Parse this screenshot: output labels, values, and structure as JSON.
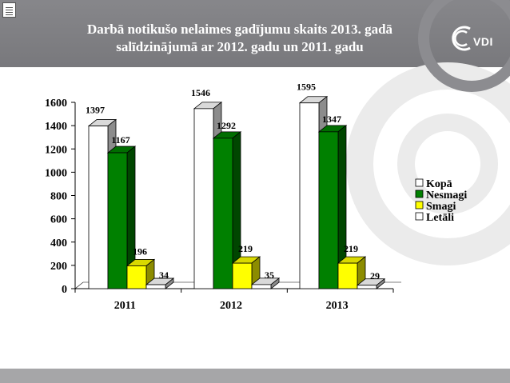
{
  "slide": {
    "title_line_1": "Darbā notikušo nelaimes gadījumu skaits 2013. gadā",
    "title_line_2": "salīdzinājumā ar 2012. gadu un 2011. gadu",
    "logo_text": "VDI",
    "notes_icon": "notes-icon"
  },
  "colors": {
    "header": "#7f7f83",
    "footer": "#a6a6a8",
    "decor": "#e8e8e8"
  },
  "chart_data": {
    "type": "bar",
    "title": "",
    "xlabel": "",
    "ylabel": "",
    "ylim": [
      0,
      1600
    ],
    "yticks": [
      0,
      200,
      400,
      600,
      800,
      1000,
      1200,
      1400,
      1600
    ],
    "grid": false,
    "legend_position": "right",
    "categories": [
      "2011",
      "2012",
      "2013"
    ],
    "series": [
      {
        "name": "Kopā",
        "values": [
          1397,
          1546,
          1595
        ],
        "color": "#ffffff"
      },
      {
        "name": "Nesmagi",
        "values": [
          1167,
          1292,
          1347
        ],
        "color": "#008000"
      },
      {
        "name": "Smagi",
        "values": [
          196,
          219,
          219
        ],
        "color": "#ffff00"
      },
      {
        "name": "Letāli",
        "values": [
          34,
          35,
          29
        ],
        "color": "#ffffff"
      }
    ]
  }
}
